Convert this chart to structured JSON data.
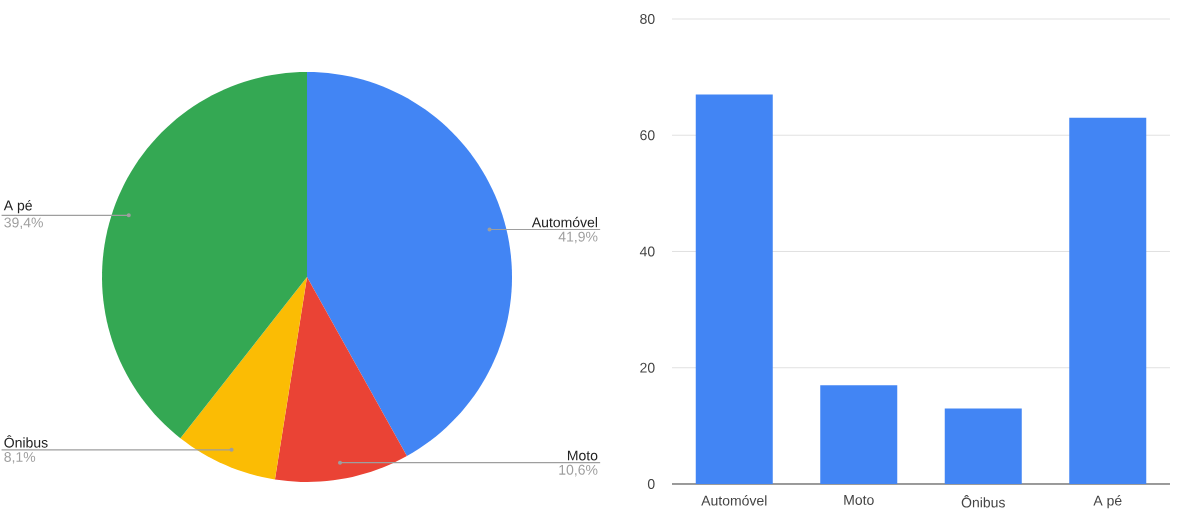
{
  "chart_data": [
    {
      "type": "pie",
      "categories": [
        "Automóvel",
        "Moto",
        "Ônibus",
        "A pé"
      ],
      "values": [
        41.9,
        10.6,
        8.1,
        39.4
      ],
      "colors": [
        "#4285f4",
        "#ea4335",
        "#fbbc04",
        "#34a853"
      ],
      "value_labels": [
        "41,9%",
        "10,6%",
        "8,1%",
        "39,4%"
      ]
    },
    {
      "type": "bar",
      "categories": [
        "Automóvel",
        "Moto",
        "Ônibus",
        "A pé"
      ],
      "values": [
        67,
        17,
        13,
        63
      ],
      "color": "#4285f4",
      "ylim": [
        0,
        80
      ],
      "yticks": [
        0,
        20,
        40,
        60,
        80
      ],
      "grid": "y"
    }
  ]
}
